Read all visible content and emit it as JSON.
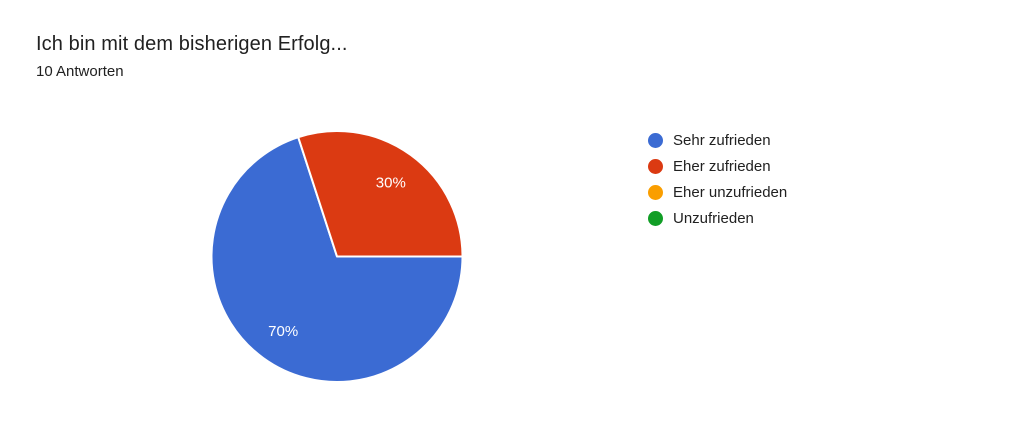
{
  "header": {
    "title": "Ich bin mit dem bisherigen Erfolg...",
    "subtitle": "10 Antworten"
  },
  "chart_data": {
    "type": "pie",
    "title": "Ich bin mit dem bisherigen Erfolg...",
    "responses_label": "10 Antworten",
    "total_responses": 10,
    "legend_position": "right",
    "start_angle": "3-oclock-clockwise",
    "categories": [
      "Sehr zufrieden",
      "Eher zufrieden",
      "Eher unzufrieden",
      "Unzufrieden"
    ],
    "values": [
      7,
      3,
      0,
      0
    ],
    "percent_labels": [
      "70%",
      "30%",
      "0%",
      "0%"
    ],
    "colors": [
      "#3b6bd3",
      "#db3a12",
      "#fa9e00",
      "#119e26"
    ],
    "slice_label_color": "#ffffff",
    "slice_border_color": "#ffffff"
  }
}
